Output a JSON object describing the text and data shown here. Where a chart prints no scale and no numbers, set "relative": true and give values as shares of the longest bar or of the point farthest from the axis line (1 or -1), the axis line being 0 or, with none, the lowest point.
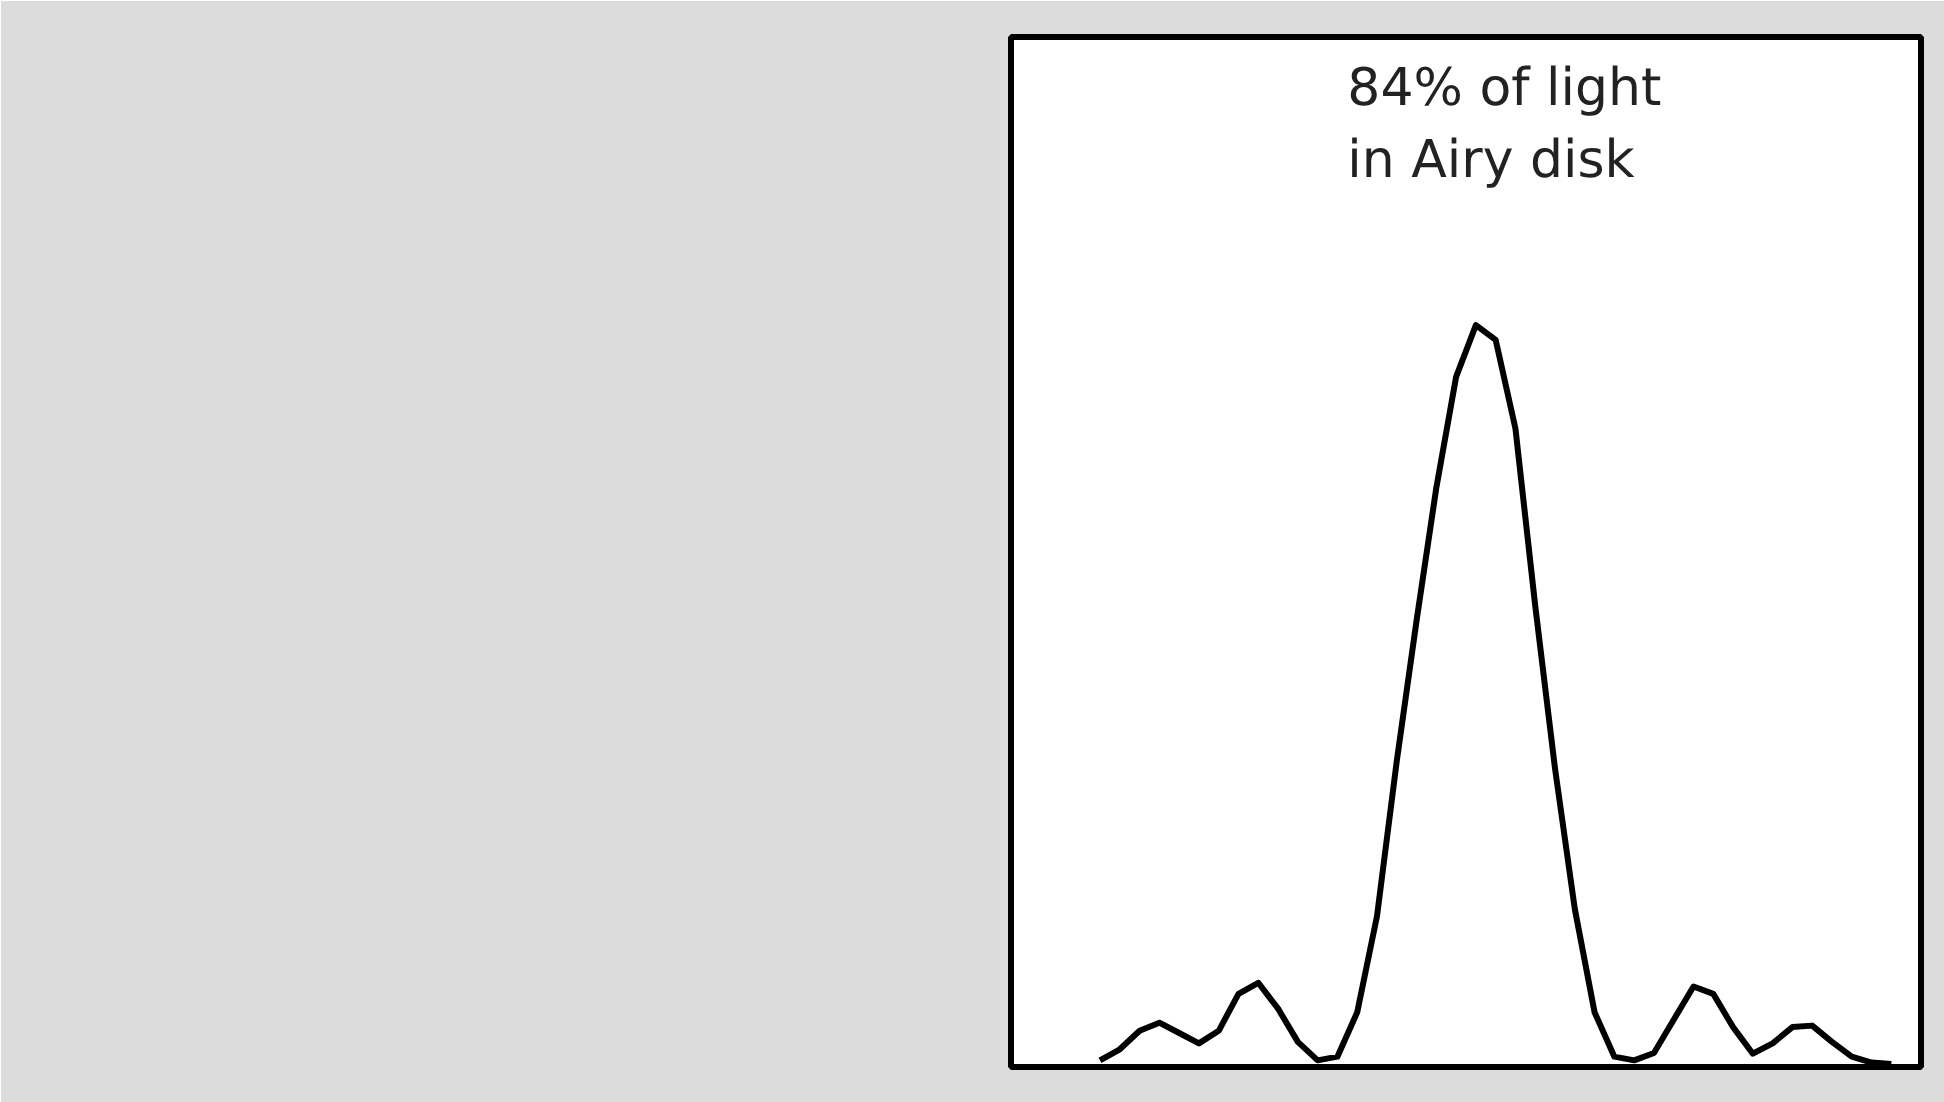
{
  "chart_data": {
    "type": "line",
    "relative": true,
    "categories": [
      null,
      null,
      null,
      null,
      null,
      null,
      null,
      null,
      null,
      null,
      null,
      null,
      null,
      null,
      null,
      null,
      null,
      null,
      null,
      null,
      null,
      null,
      null,
      null,
      null,
      null,
      null,
      null,
      null,
      null,
      null,
      null,
      null,
      null,
      null,
      null,
      null,
      null,
      null,
      null,
      null
    ],
    "series": [
      {
        "color": "#000000",
        "values": [
          0.005,
          0.02,
          0.045,
          0.056,
          0.042,
          0.028,
          0.045,
          0.095,
          0.11,
          0.075,
          0.03,
          0.005,
          0.01,
          0.07,
          0.2,
          0.41,
          0.6,
          0.78,
          0.93,
          1.0,
          0.98,
          0.86,
          0.62,
          0.4,
          0.21,
          0.07,
          0.01,
          0.005,
          0.015,
          0.06,
          0.105,
          0.095,
          0.05,
          0.014,
          0.028,
          0.05,
          0.052,
          0.03,
          0.01,
          0.002,
          0.0
        ]
      }
    ],
    "annotations": [
      "84% of light\nin Airy disk"
    ],
    "grid": false,
    "marker": "none",
    "line_style": "solid"
  }
}
